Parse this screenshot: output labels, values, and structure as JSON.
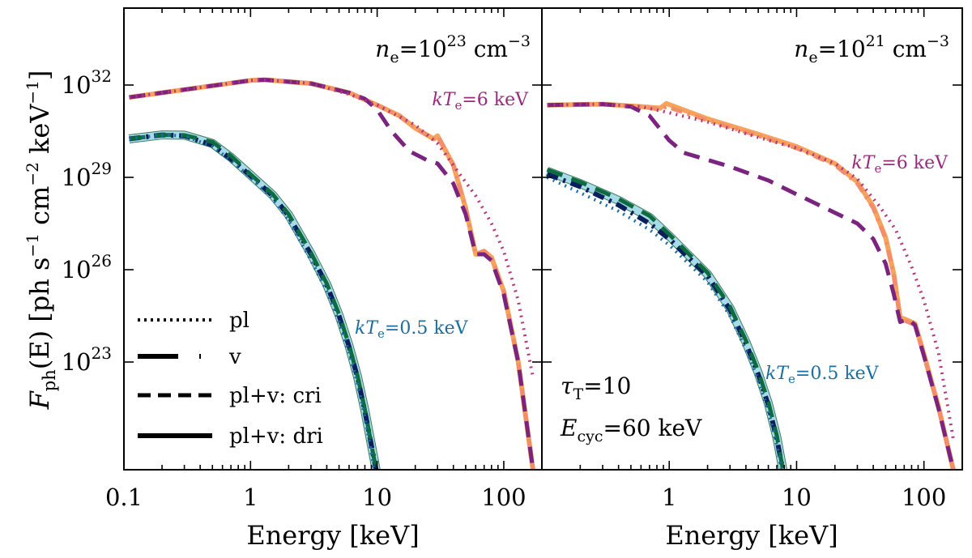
{
  "figure": {
    "ylabel": "F_ph(E) [ph s^-1 cm^-2 keV^-1]",
    "ylabel_parts": {
      "main": "F",
      "sub": "ph",
      "arg": "(E) [ph s",
      "e1": "−1",
      "mid": " cm",
      "e2": "−2",
      "mid2": " keV",
      "e3": "−1",
      "end": "]"
    },
    "colors": {
      "pl_hot": "#b5367a",
      "v_hot": "#f28e6a",
      "cri_hot": "#7a2480",
      "dri_hot": "#f7a35c",
      "pl_cold": "#1a6ea0",
      "v_cold": "#0b1f5c",
      "cri_cold": "#0d6b3f",
      "dri_cold": "#a8dbe8",
      "label_hot": "#9a2a7c",
      "label_cold": "#1a6ea0"
    }
  },
  "legend": {
    "items": [
      {
        "label": "pl",
        "style": "dotted"
      },
      {
        "label": "v",
        "style": "dashdot"
      },
      {
        "label": "pl+v: cri",
        "style": "dashed"
      },
      {
        "label": "pl+v: dri",
        "style": "solid"
      }
    ]
  },
  "chart_data": [
    {
      "type": "line",
      "panel": "left",
      "title": "",
      "annotation_density": {
        "prefix": "n",
        "sub": "e",
        "eq": "=10",
        "exp": "23",
        "unit": " cm",
        "unit_exp": "−3"
      },
      "annotation_hot": {
        "prefix": "kT",
        "sub": "e",
        "value": "=6 keV"
      },
      "annotation_cold": {
        "prefix": "kT",
        "sub": "e",
        "value": "=0.5 keV"
      },
      "xlabel": "Energy [keV]",
      "xscale": "log",
      "yscale": "log",
      "xlim": [
        0.1,
        200
      ],
      "ylim_log10": [
        19.5,
        34.5
      ],
      "x_ticks": [
        {
          "v": 0.1,
          "label": "0.1"
        },
        {
          "v": 1,
          "label": "1"
        },
        {
          "v": 10,
          "label": "10"
        },
        {
          "v": 100,
          "label": "100"
        }
      ],
      "y_ticks": [
        {
          "exp": 23,
          "base": "10",
          "label": "23"
        },
        {
          "exp": 26,
          "base": "10",
          "label": "26"
        },
        {
          "exp": 29,
          "base": "10",
          "label": "29"
        },
        {
          "exp": 32,
          "base": "10",
          "label": "32"
        }
      ],
      "series": [
        {
          "name": "pl kTe=6 keV",
          "group": "hot",
          "style": "dotted",
          "x": [
            0.11,
            0.3,
            1,
            1.3,
            3,
            6,
            10,
            20,
            30,
            45,
            60,
            80,
            100,
            130,
            170
          ],
          "y": [
            31.6,
            31.85,
            32.15,
            32.17,
            32.05,
            31.7,
            31.35,
            30.7,
            30.1,
            29.1,
            28.4,
            27.5,
            26.6,
            25.0,
            22.5
          ]
        },
        {
          "name": "v kTe=6 keV",
          "group": "hot",
          "style": "dashdot",
          "x": [
            0.11,
            0.3,
            1,
            1.3,
            3,
            6,
            10,
            15,
            20,
            28,
            30,
            40,
            50,
            60,
            70,
            80,
            100,
            130,
            170
          ],
          "y": [
            31.6,
            31.85,
            32.15,
            32.17,
            32.05,
            31.75,
            31.35,
            31.0,
            30.6,
            30.25,
            30.35,
            29.4,
            28.0,
            26.5,
            26.6,
            26.4,
            25.3,
            23.0,
            19.5
          ]
        },
        {
          "name": "cri kTe=6 keV",
          "group": "hot",
          "style": "dashed",
          "x": [
            0.11,
            0.3,
            1,
            1.3,
            3,
            6,
            8,
            10,
            13,
            18,
            25,
            30,
            40,
            50,
            60,
            70,
            80,
            100,
            130,
            170
          ],
          "y": [
            31.6,
            31.85,
            32.15,
            32.17,
            32.05,
            31.75,
            31.55,
            31.2,
            30.5,
            29.85,
            29.55,
            29.45,
            28.8,
            27.8,
            26.5,
            26.5,
            26.3,
            25.2,
            23.0,
            19.5
          ]
        },
        {
          "name": "dri kTe=6 keV",
          "group": "hot",
          "style": "solid",
          "x": [
            0.11,
            0.3,
            1,
            1.3,
            3,
            6,
            10,
            15,
            20,
            28,
            30,
            40,
            50,
            60,
            70,
            80,
            100,
            130,
            170
          ],
          "y": [
            31.6,
            31.85,
            32.15,
            32.17,
            32.05,
            31.75,
            31.35,
            31.0,
            30.6,
            30.25,
            30.35,
            29.4,
            28.0,
            26.5,
            26.6,
            26.4,
            25.3,
            23.0,
            19.5
          ]
        },
        {
          "name": "pl kTe=0.5 keV",
          "group": "cold",
          "style": "dotted",
          "x": [
            0.11,
            0.2,
            0.3,
            0.5,
            0.7,
            1,
            1.5,
            2,
            3,
            4,
            5,
            6,
            7,
            8,
            9.5
          ],
          "y": [
            30.25,
            30.38,
            30.35,
            30.0,
            29.55,
            29.0,
            28.3,
            27.6,
            26.3,
            25.3,
            24.3,
            23.3,
            22.3,
            21.2,
            19.5
          ]
        },
        {
          "name": "v kTe=0.5 keV",
          "group": "cold",
          "style": "dashdot",
          "x": [
            0.11,
            0.2,
            0.3,
            0.5,
            0.7,
            1,
            1.5,
            2,
            3,
            4,
            5,
            6,
            7,
            8,
            9.8
          ],
          "y": [
            30.25,
            30.38,
            30.35,
            30.05,
            29.6,
            29.05,
            28.4,
            27.75,
            26.5,
            25.5,
            24.5,
            23.5,
            22.5,
            21.4,
            19.5
          ]
        },
        {
          "name": "cri kTe=0.5 keV",
          "group": "cold",
          "style": "dashed",
          "x": [
            0.11,
            0.2,
            0.3,
            0.5,
            0.7,
            1,
            1.5,
            2,
            3,
            4,
            5,
            6,
            7,
            8,
            9.8
          ],
          "y": [
            30.25,
            30.38,
            30.37,
            30.15,
            29.7,
            29.1,
            28.45,
            27.8,
            26.55,
            25.55,
            24.55,
            23.55,
            22.55,
            21.45,
            19.5
          ]
        },
        {
          "name": "dri kTe=0.5 keV",
          "group": "cold",
          "style": "solid",
          "x": [
            0.11,
            0.2,
            0.3,
            0.5,
            0.7,
            1,
            1.5,
            2,
            3,
            4,
            5,
            6,
            7,
            8,
            9.8
          ],
          "y": [
            30.25,
            30.38,
            30.37,
            30.1,
            29.65,
            29.08,
            28.42,
            27.78,
            26.52,
            25.52,
            24.52,
            23.52,
            22.52,
            21.42,
            19.5
          ]
        }
      ]
    },
    {
      "type": "line",
      "panel": "right",
      "title": "",
      "annotation_density": {
        "prefix": "n",
        "sub": "e",
        "eq": "=10",
        "exp": "21",
        "unit": " cm",
        "unit_exp": "−3"
      },
      "annotation_hot": {
        "prefix": "kT",
        "sub": "e",
        "value": "=6 keV"
      },
      "annotation_cold": {
        "prefix": "kT",
        "sub": "e",
        "value": "=0.5 keV"
      },
      "annotation_tau": {
        "prefix": "τ",
        "sub": "T",
        "value": "=10"
      },
      "annotation_ecyc": {
        "prefix": "E",
        "sub": "cyc",
        "value": "=60 keV"
      },
      "xlabel": "Energy [keV]",
      "xscale": "log",
      "yscale": "log",
      "xlim": [
        0.1,
        200
      ],
      "ylim_log10": [
        19.5,
        34.5
      ],
      "x_ticks": [
        {
          "v": 1,
          "label": "1"
        },
        {
          "v": 10,
          "label": "10"
        },
        {
          "v": 100,
          "label": "100"
        }
      ],
      "y_ticks": [
        {
          "exp": 23
        },
        {
          "exp": 26
        },
        {
          "exp": 29
        },
        {
          "exp": 32
        }
      ],
      "series": [
        {
          "name": "pl kTe=6 keV",
          "group": "hot",
          "style": "dotted",
          "x": [
            0.11,
            0.3,
            0.6,
            1,
            2,
            5,
            10,
            20,
            30,
            45,
            60,
            80,
            100,
            130,
            170
          ],
          "y": [
            31.35,
            31.38,
            31.3,
            31.1,
            30.8,
            30.3,
            29.95,
            29.45,
            28.95,
            28.05,
            27.3,
            26.1,
            25.0,
            23.3,
            20.5
          ]
        },
        {
          "name": "v kTe=6 keV",
          "group": "hot",
          "style": "dashdot",
          "x": [
            0.11,
            0.3,
            0.6,
            0.85,
            0.95,
            2,
            5,
            10,
            20,
            30,
            40,
            50,
            58,
            65,
            75,
            85,
            100,
            130,
            170
          ],
          "y": [
            31.35,
            31.38,
            31.3,
            31.2,
            31.3,
            30.85,
            30.35,
            29.95,
            29.4,
            28.8,
            28.0,
            27.0,
            25.8,
            24.4,
            24.3,
            24.2,
            23.2,
            21.5,
            19.5
          ]
        },
        {
          "name": "cri kTe=6 keV",
          "group": "hot",
          "style": "dashed",
          "x": [
            0.11,
            0.3,
            0.5,
            0.7,
            1,
            1.3,
            3,
            6,
            10,
            15,
            20,
            30,
            40,
            50,
            58,
            65,
            75,
            85,
            100,
            130,
            170
          ],
          "y": [
            31.35,
            31.38,
            31.3,
            31.0,
            30.2,
            29.8,
            29.35,
            28.9,
            28.45,
            28.1,
            27.85,
            27.5,
            27.0,
            26.2,
            25.2,
            24.3,
            24.4,
            24.2,
            23.2,
            21.5,
            19.5
          ]
        },
        {
          "name": "dri kTe=6 keV",
          "group": "hot",
          "style": "solid",
          "x": [
            0.11,
            0.3,
            0.6,
            0.85,
            0.95,
            2,
            5,
            10,
            20,
            30,
            40,
            50,
            58,
            65,
            75,
            85,
            100,
            130,
            170
          ],
          "y": [
            31.35,
            31.38,
            31.3,
            31.25,
            31.4,
            30.9,
            30.4,
            30.0,
            29.45,
            28.85,
            28.05,
            27.05,
            25.85,
            24.45,
            24.35,
            24.25,
            23.25,
            21.55,
            19.5
          ]
        },
        {
          "name": "pl kTe=0.5 keV",
          "group": "cold",
          "style": "dotted",
          "x": [
            0.11,
            0.2,
            0.4,
            0.7,
            1,
            2,
            3,
            4,
            5,
            6,
            7,
            7.6
          ],
          "y": [
            29.0,
            28.5,
            27.9,
            27.3,
            26.8,
            25.6,
            24.5,
            23.4,
            22.4,
            21.4,
            20.3,
            19.5
          ]
        },
        {
          "name": "v kTe=0.5 keV",
          "group": "cold",
          "style": "dashdot",
          "x": [
            0.11,
            0.2,
            0.4,
            0.7,
            1,
            2,
            3,
            4,
            5,
            6,
            7,
            7.8
          ],
          "y": [
            29.1,
            28.7,
            28.1,
            27.5,
            27.0,
            25.8,
            24.7,
            23.6,
            22.6,
            21.6,
            20.5,
            19.5
          ]
        },
        {
          "name": "cri kTe=0.5 keV",
          "group": "cold",
          "style": "dashed",
          "x": [
            0.11,
            0.2,
            0.4,
            0.7,
            1,
            2,
            3,
            4,
            5,
            6,
            7,
            7.8
          ],
          "y": [
            29.25,
            28.85,
            28.3,
            27.75,
            27.15,
            25.9,
            24.8,
            23.7,
            22.7,
            21.7,
            20.6,
            19.5
          ]
        },
        {
          "name": "dri kTe=0.5 keV",
          "group": "cold",
          "style": "solid",
          "x": [
            0.11,
            0.2,
            0.4,
            0.7,
            1,
            2,
            3,
            4,
            5,
            6,
            7,
            7.8
          ],
          "y": [
            29.2,
            28.8,
            28.25,
            27.7,
            27.1,
            25.85,
            24.75,
            23.65,
            22.65,
            21.65,
            20.55,
            19.5
          ]
        }
      ]
    }
  ]
}
